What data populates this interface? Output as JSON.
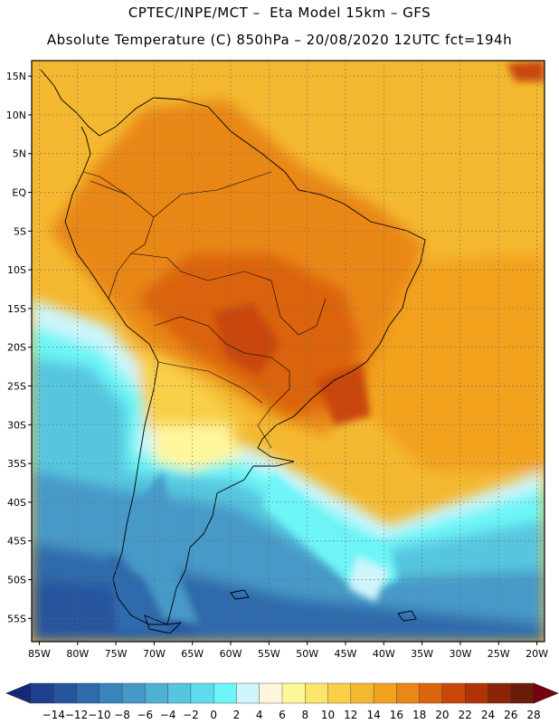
{
  "header": {
    "line1": "CPTEC/INPE/MCT –  Eta Model 15km – GFS",
    "line2": "Absolute Temperature (C) 850hPa – 20/08/2020 12UTC fct=194h"
  },
  "axes": {
    "lat_labels": [
      "15N",
      "10N",
      "5N",
      "EQ",
      "5S",
      "10S",
      "15S",
      "20S",
      "25S",
      "30S",
      "35S",
      "40S",
      "45S",
      "50S",
      "55S"
    ],
    "lat_values": [
      15,
      10,
      5,
      0,
      -5,
      -10,
      -15,
      -20,
      -25,
      -30,
      -35,
      -40,
      -45,
      -50,
      -55
    ],
    "lon_labels": [
      "85W",
      "80W",
      "75W",
      "70W",
      "65W",
      "60W",
      "55W",
      "50W",
      "45W",
      "40W",
      "35W",
      "30W",
      "25W",
      "20W"
    ],
    "lon_values": [
      -85,
      -80,
      -75,
      -70,
      -65,
      -60,
      -55,
      -50,
      -45,
      -40,
      -35,
      -30,
      -25,
      -20
    ],
    "lat_range": [
      -58,
      17
    ],
    "lon_range": [
      -86,
      -19
    ]
  },
  "colorbar": {
    "labels": [
      "-14",
      "-12",
      "-10",
      "-8",
      "-6",
      "-4",
      "-2",
      "0",
      "2",
      "4",
      "6",
      "8",
      "10",
      "12",
      "14",
      "16",
      "18",
      "20",
      "22",
      "24",
      "26",
      "28"
    ],
    "colors": [
      "#1f3f8f",
      "#26559e",
      "#2e6aac",
      "#3a84bd",
      "#4699c7",
      "#4eb1d3",
      "#56c6df",
      "#5fdcec",
      "#6df5f7",
      "#cdf5fb",
      "#fff5dc",
      "#fff79b",
      "#fde56b",
      "#f9cf4a",
      "#f4b830",
      "#f2a21f",
      "#e98718",
      "#db640e",
      "#c94709",
      "#b03306",
      "#8c2506",
      "#6b1c08"
    ],
    "under_color": "#15297a",
    "over_color": "#7a0010"
  },
  "map": {
    "grid": "dotted",
    "fields": {
      "ocean_north": "#f4b830",
      "ocean_subtropic": "#f2a21f",
      "continent_warm": "#e98718",
      "continent_hot": "#db640e",
      "andes_mild": "#f9cf4a",
      "coastal_cool": "#fff79b",
      "transition_pale": "#cdf5fb",
      "cold_cyan": "#6df5f7",
      "cold_light": "#56c6df",
      "cold_mid": "#4699c7",
      "cold_deep": "#2e6aac",
      "cold_deepest": "#26559e"
    }
  }
}
